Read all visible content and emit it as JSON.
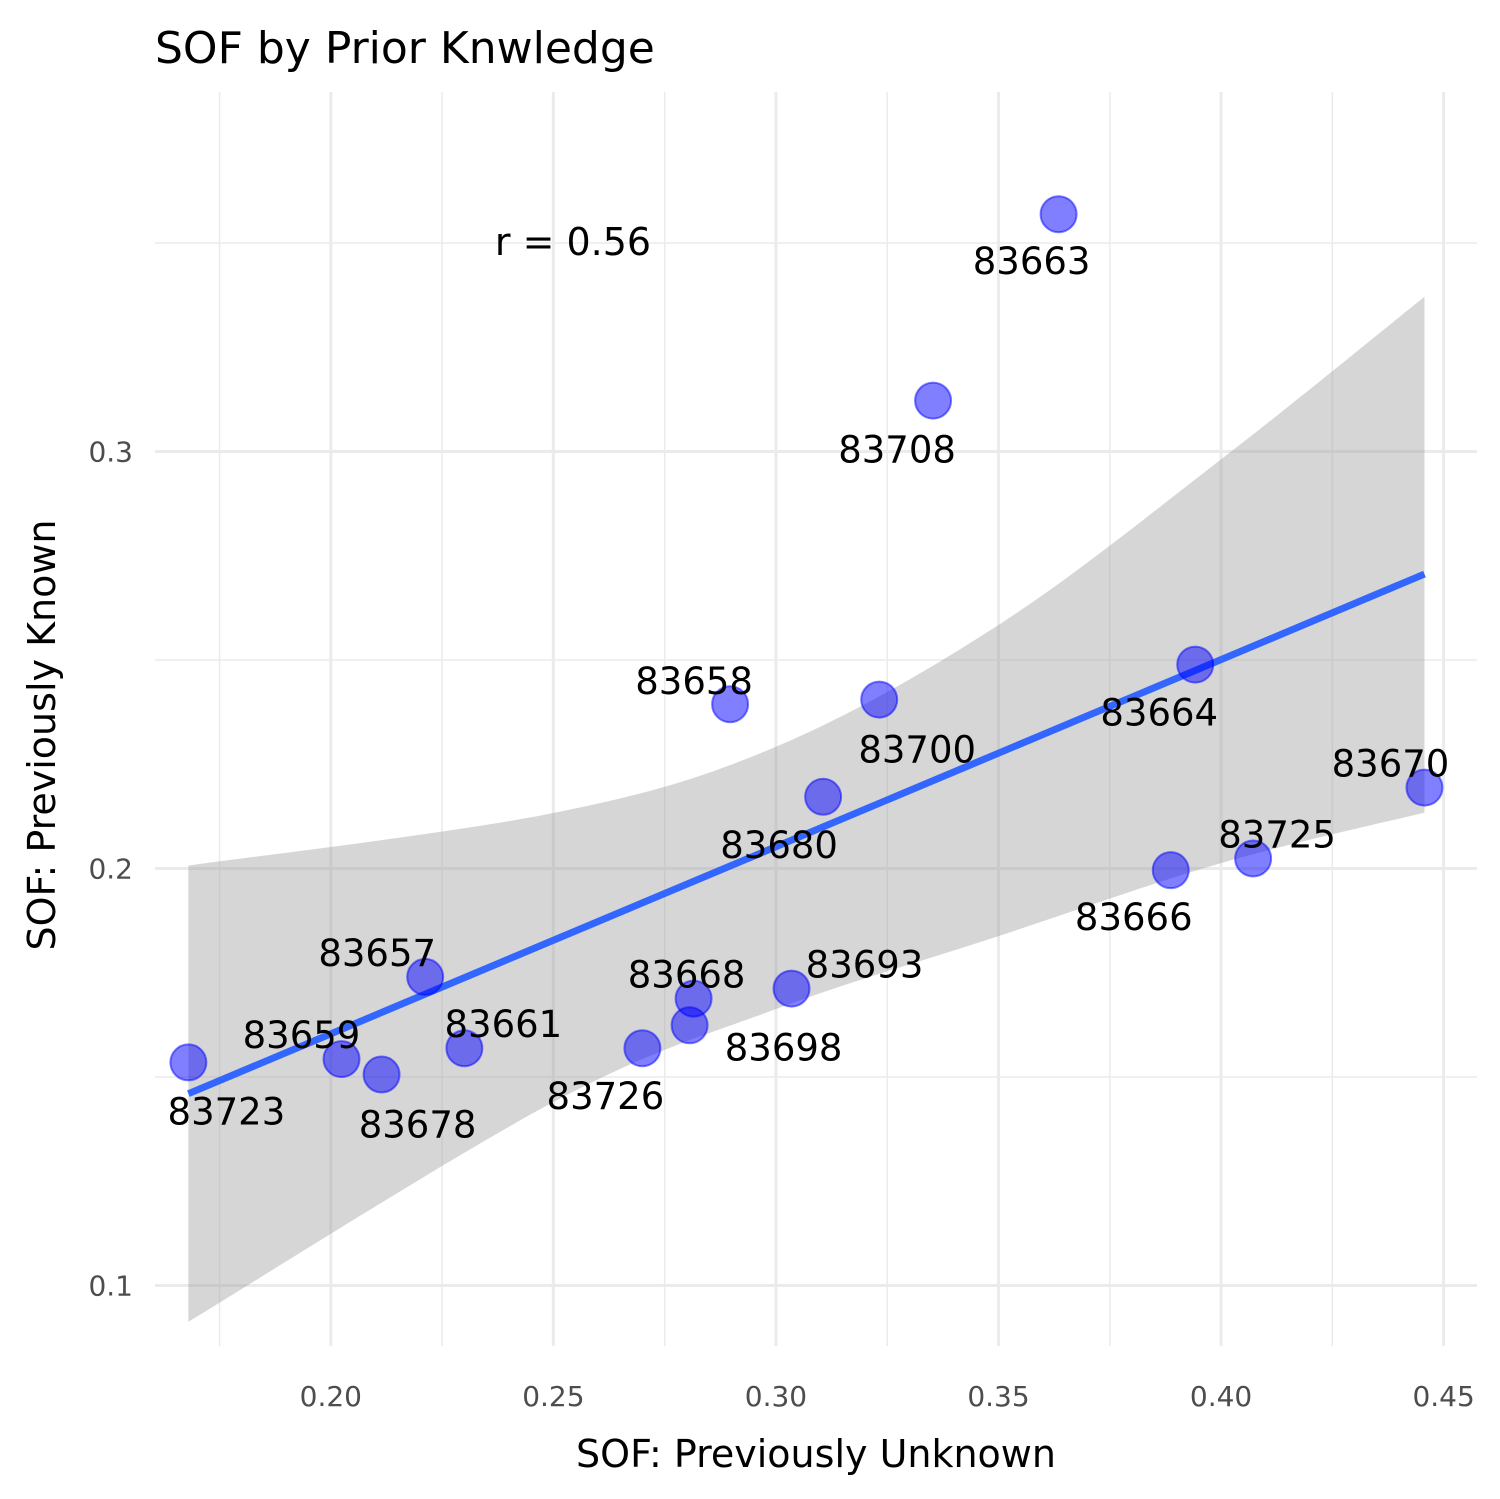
{
  "chart_data": {
    "type": "scatter",
    "title": "SOF by Prior Knwledge",
    "xlabel": "SOF: Previously Unknown",
    "ylabel": "SOF: Previously Known",
    "xlim": [
      0.1605,
      0.4575
    ],
    "ylim": [
      0.0855,
      0.3862
    ],
    "x_ticks": [
      0.2,
      0.25,
      0.3,
      0.35,
      0.4,
      0.45
    ],
    "x_tick_labels": [
      "0.20",
      "0.25",
      "0.30",
      "0.35",
      "0.40",
      "0.45"
    ],
    "y_ticks": [
      0.1,
      0.2,
      0.3
    ],
    "y_tick_labels": [
      "0.1",
      "0.2",
      "0.3"
    ],
    "x_minor_ticks": [
      0.175,
      0.225,
      0.275,
      0.325,
      0.375,
      0.425
    ],
    "y_minor_ticks": [
      0.15,
      0.25,
      0.35
    ],
    "grid": true,
    "annotation": "r = 0.56",
    "point_color": "#0000ff",
    "line_color": "#3366ff",
    "band_color": "#999999",
    "points": [
      {
        "label": "83663",
        "x": 0.3635,
        "y": 0.3569
      },
      {
        "label": "83708",
        "x": 0.3353,
        "y": 0.3122
      },
      {
        "label": "83658",
        "x": 0.2897,
        "y": 0.2394
      },
      {
        "label": "83664",
        "x": 0.3942,
        "y": 0.2489
      },
      {
        "label": "83700",
        "x": 0.3232,
        "y": 0.2405
      },
      {
        "label": "83670",
        "x": 0.4457,
        "y": 0.2194
      },
      {
        "label": "83680",
        "x": 0.3106,
        "y": 0.2172
      },
      {
        "label": "83725",
        "x": 0.4072,
        "y": 0.2024
      },
      {
        "label": "83666",
        "x": 0.3887,
        "y": 0.1996
      },
      {
        "label": "83657",
        "x": 0.2212,
        "y": 0.174
      },
      {
        "label": "83693",
        "x": 0.3035,
        "y": 0.1712
      },
      {
        "label": "83668",
        "x": 0.2815,
        "y": 0.1688
      },
      {
        "label": "83698",
        "x": 0.2806,
        "y": 0.1624
      },
      {
        "label": "83661",
        "x": 0.23,
        "y": 0.1569
      },
      {
        "label": "83726",
        "x": 0.27,
        "y": 0.1569
      },
      {
        "label": "83659",
        "x": 0.2024,
        "y": 0.1543
      },
      {
        "label": "83678",
        "x": 0.2114,
        "y": 0.1506
      },
      {
        "label": "83723",
        "x": 0.168,
        "y": 0.1535
      }
    ],
    "regression": {
      "x": [
        0.168,
        0.4457
      ],
      "y": [
        0.146,
        0.2706
      ]
    },
    "confidence_band": {
      "x": [
        0.168,
        0.25,
        0.3,
        0.35,
        0.4,
        0.4457
      ],
      "upper": [
        0.2007,
        0.2133,
        0.2292,
        0.2584,
        0.2981,
        0.3371
      ],
      "lower": [
        0.0913,
        0.144,
        0.1663,
        0.1838,
        0.2013,
        0.2134
      ]
    }
  }
}
